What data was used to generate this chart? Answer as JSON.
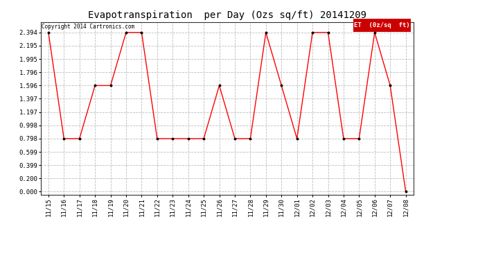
{
  "title": "Evapotranspiration  per Day (Ozs sq/ft) 20141209",
  "copyright": "Copyright 2014 Cartronics.com",
  "legend_label": "ET  (0z/sq  ft)",
  "dates": [
    "11/15",
    "11/16",
    "11/17",
    "11/18",
    "11/19",
    "11/20",
    "11/21",
    "11/22",
    "11/23",
    "11/24",
    "11/25",
    "11/26",
    "11/27",
    "11/28",
    "11/29",
    "11/30",
    "12/01",
    "12/02",
    "12/03",
    "12/04",
    "12/05",
    "12/06",
    "12/07",
    "12/08"
  ],
  "values": [
    2.394,
    0.798,
    0.798,
    1.596,
    1.596,
    2.394,
    2.394,
    0.798,
    0.798,
    0.798,
    0.798,
    1.596,
    0.798,
    0.798,
    2.394,
    1.596,
    0.798,
    2.394,
    2.394,
    0.798,
    0.798,
    2.394,
    1.596,
    0.0
  ],
  "yticks": [
    0.0,
    0.2,
    0.399,
    0.599,
    0.798,
    0.998,
    1.197,
    1.397,
    1.596,
    1.796,
    1.995,
    2.195,
    2.394
  ],
  "line_color": "#FF0000",
  "marker_color": "#000000",
  "bg_color": "#FFFFFF",
  "grid_color": "#BBBBBB",
  "legend_bg": "#CC0000",
  "legend_text_color": "#FFFFFF",
  "title_fontsize": 10,
  "tick_fontsize": 6.5,
  "copyright_fontsize": 5.5,
  "legend_fontsize": 6.5,
  "ylim_min": -0.05,
  "ylim_max": 2.55
}
